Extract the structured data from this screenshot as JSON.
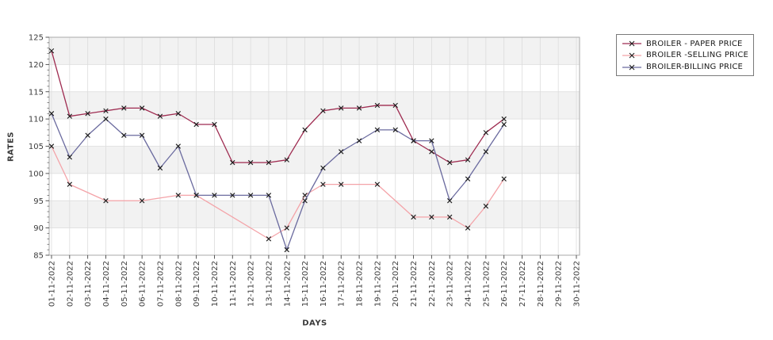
{
  "chart_data": {
    "type": "line",
    "title": "",
    "xlabel": "DAYS",
    "ylabel": "RATES",
    "ylim": [
      85,
      125
    ],
    "y_ticks": [
      85,
      90,
      95,
      100,
      105,
      110,
      115,
      120,
      125
    ],
    "grid": true,
    "legend_position": "outside-right-top",
    "band_fill_ranges": [
      [
        90,
        95
      ],
      [
        100,
        105
      ],
      [
        110,
        115
      ],
      [
        120,
        125
      ]
    ],
    "band_fill_color": "#f2f2f2",
    "grid_color": "#dcdcdc",
    "marker": "x",
    "marker_color": "#1c1c1c",
    "x_labels": [
      "01-11-2022",
      "02-11-2022",
      "03-11-2022",
      "04-11-2022",
      "05-11-2022",
      "06-11-2022",
      "07-11-2022",
      "08-11-2022",
      "09-11-2022",
      "10-11-2022",
      "11-11-2022",
      "12-11-2022",
      "13-11-2022",
      "14-11-2022",
      "15-11-2022",
      "16-11-2022",
      "17-11-2022",
      "18-11-2022",
      "19-11-2022",
      "20-11-2022",
      "21-11-2022",
      "22-11-2022",
      "23-11-2022",
      "24-11-2022",
      "25-11-2022",
      "26-11-2022",
      "27-11-2022",
      "28-11-2022",
      "29-11-2022",
      "30-11-2022"
    ],
    "series": [
      {
        "name": "BROILER - PAPER PRICE",
        "color": "#9e2b50",
        "days": [
          1,
          2,
          3,
          4,
          5,
          6,
          7,
          8,
          9,
          10,
          11,
          12,
          13,
          14,
          15,
          16,
          17,
          18,
          19,
          20,
          21,
          22,
          23,
          24,
          25,
          26
        ],
        "values": [
          122.5,
          110.5,
          111,
          111.5,
          112,
          112,
          110.5,
          111,
          109,
          109,
          102,
          102,
          102,
          102.5,
          108,
          111.5,
          112,
          112,
          112.5,
          112.5,
          106,
          104,
          102,
          102.5,
          107.5,
          110
        ]
      },
      {
        "name": "BROILER -SELLING PRICE",
        "color": "#f4a3a8",
        "days": [
          1,
          2,
          4,
          6,
          8,
          9,
          13,
          14,
          15,
          16,
          17,
          19,
          21,
          22,
          23,
          24,
          25,
          26
        ],
        "values": [
          105,
          98,
          95,
          95,
          96,
          96,
          88,
          90,
          96,
          98,
          98,
          98,
          92,
          92,
          92,
          90,
          94,
          99
        ]
      },
      {
        "name": "BROILER-BILLING PRICE",
        "color": "#6b6b9f",
        "days": [
          1,
          2,
          3,
          4,
          5,
          6,
          7,
          8,
          9,
          10,
          11,
          12,
          13,
          14,
          15,
          16,
          17,
          18,
          19,
          20,
          21,
          22,
          23,
          24,
          25,
          26
        ],
        "values": [
          111,
          103,
          107,
          110,
          107,
          107,
          101,
          105,
          96,
          96,
          96,
          96,
          96,
          86,
          95,
          101,
          104,
          106,
          108,
          108,
          106,
          106,
          95,
          99,
          104,
          109
        ]
      }
    ]
  }
}
